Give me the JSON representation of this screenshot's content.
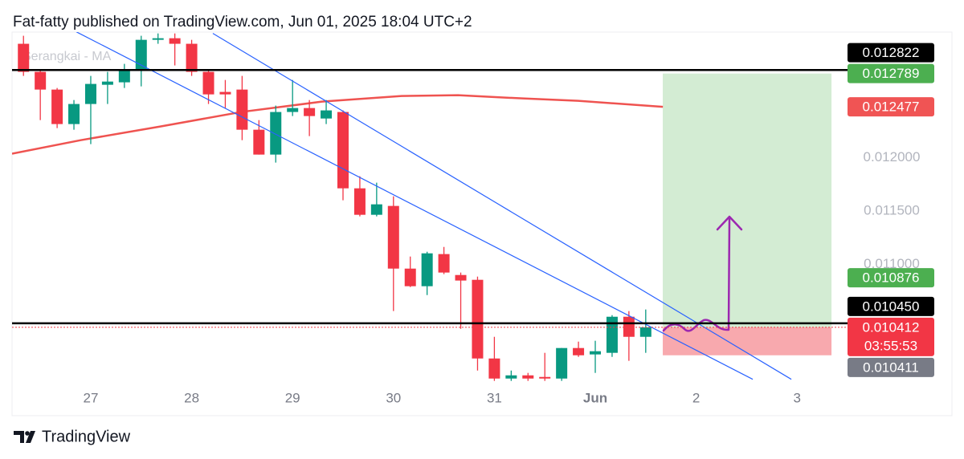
{
  "chart_data": {
    "type": "candlestick",
    "title": "Fat-fatty published on TradingView.com, Jun 01, 2025 18:04 UTC+2",
    "brand": "TradingView",
    "xlim": [
      26.22,
      34.46
    ],
    "ylim": [
      0.0099,
      0.0132
    ],
    "xticks": [
      27,
      28,
      29,
      30,
      31,
      {
        "value": 32,
        "label": "Jun"
      },
      {
        "value": 33,
        "label": "2"
      },
      {
        "value": 34,
        "label": "3"
      }
    ],
    "yticks": [
      {
        "value": 0.012,
        "label": "0.012000"
      },
      {
        "value": 0.0115,
        "label": "0.011500"
      },
      {
        "value": 0.011,
        "label": "0.011000"
      }
    ],
    "up_color": "#089981",
    "down_color": "#f23645",
    "candles": {
      "x": [
        26.3333,
        26.5,
        26.6667,
        26.8333,
        27,
        27.1667,
        27.3333,
        27.5,
        27.6667,
        27.8333,
        28,
        28.1667,
        28.3333,
        28.5,
        28.6667,
        28.8333,
        29,
        29.1667,
        29.3333,
        29.5,
        29.6667,
        29.8333,
        30,
        30.1667,
        30.3333,
        30.5,
        30.6667,
        30.8333,
        31,
        31.1667,
        31.3333,
        31.5,
        31.6667,
        31.8333,
        32,
        32.1667,
        32.3333,
        32.5
      ],
      "open": [
        0.013068,
        0.012805,
        0.012639,
        0.012316,
        0.012504,
        0.012684,
        0.012707,
        0.01282,
        0.013105,
        0.01312,
        0.013068,
        0.012805,
        0.012617,
        0.012639,
        0.012263,
        0.01203,
        0.012429,
        0.012466,
        0.012368,
        0.012429,
        0.011714,
        0.011466,
        0.011549,
        0.010962,
        0.010797,
        0.011098,
        0.010902,
        0.010857,
        0.01012,
        0.009932,
        0.009962,
        0.009947,
        0.009932,
        0.010218,
        0.010158,
        0.010173,
        0.010511,
        0.010323
      ],
      "high": [
        0.013143,
        0.01282,
        0.012654,
        0.012541,
        0.012767,
        0.012805,
        0.01288,
        0.013143,
        0.013165,
        0.013165,
        0.013105,
        0.01282,
        0.012729,
        0.012767,
        0.012353,
        0.012489,
        0.012729,
        0.012541,
        0.012541,
        0.012444,
        0.011827,
        0.011767,
        0.011639,
        0.011075,
        0.01112,
        0.011165,
        0.010925,
        0.010887,
        0.010323,
        0.010007,
        0.009985,
        0.010173,
        0.010218,
        0.010278,
        0.010286,
        0.010526,
        0.010564,
        0.010579
      ],
      "low": [
        0.012767,
        0.012353,
        0.012278,
        0.012263,
        0.012128,
        0.012504,
        0.012654,
        0.012669,
        0.013068,
        0.012865,
        0.012767,
        0.012504,
        0.012466,
        0.012165,
        0.01203,
        0.011955,
        0.012391,
        0.012203,
        0.012316,
        0.011602,
        0.011451,
        0.011451,
        0.010564,
        0.010789,
        0.010714,
        0.01091,
        0.010398,
        0.010007,
        0.00991,
        0.00991,
        0.00991,
        0.00991,
        0.00991,
        0.010135,
        0.009985,
        0.010135,
        0.010098,
        0.010173
      ],
      "close": [
        0.012805,
        0.012639,
        0.012316,
        0.012504,
        0.012692,
        0.012714,
        0.01282,
        0.013105,
        0.01312,
        0.013068,
        0.012805,
        0.012594,
        0.012594,
        0.012263,
        0.01203,
        0.012429,
        0.012466,
        0.012391,
        0.012444,
        0.011714,
        0.011466,
        0.011564,
        0.010962,
        0.010797,
        0.011105,
        0.010925,
        0.01085,
        0.01012,
        0.009932,
        0.009962,
        0.009932,
        0.009932,
        0.010218,
        0.01015,
        0.010188,
        0.010511,
        0.010323,
        0.010412
      ]
    },
    "ma": {
      "name": "Serangkai - MA",
      "color": "#ef5350",
      "x": [
        26.22,
        26.9,
        27.69,
        28.49,
        29.29,
        30.08,
        30.64,
        31.28,
        31.83,
        32.67
      ],
      "values": [
        0.012038,
        0.012165,
        0.012293,
        0.012429,
        0.012526,
        0.012579,
        0.012586,
        0.012556,
        0.012534,
        0.012477
      ]
    },
    "trend_lines": [
      {
        "color": "#2962ff",
        "x": [
          26.857,
          33.561
        ],
        "values": [
          0.01318,
          0.009925
        ]
      },
      {
        "color": "#2962ff",
        "x": [
          28.21,
          33.943
        ],
        "values": [
          0.013165,
          0.009925
        ]
      }
    ],
    "horizontal_lines": [
      {
        "value": 0.012822,
        "color": "#000000"
      },
      {
        "value": 0.01045,
        "color": "#000000"
      }
    ],
    "position": {
      "x": [
        32.669,
        34.341
      ],
      "entry": 0.010412,
      "target": 0.012789,
      "stop": 0.01015,
      "profit_color": "#d3ecd3",
      "loss_color": "#f8a9ae"
    },
    "price_labels": [
      {
        "value": 0.012822,
        "label": "0.012822",
        "color": "#000000"
      },
      {
        "value": 0.012789,
        "label": "0.012789",
        "color": "#4caf50"
      },
      {
        "value": 0.012477,
        "label": "0.012477",
        "color": "#f05454"
      },
      {
        "value": 0.010876,
        "label": "0.010876",
        "color": "#4caf50"
      },
      {
        "value": 0.01045,
        "label": "0.010450",
        "color": "#000000"
      },
      {
        "value": 0.010412,
        "label": "0.010412",
        "color": "#f23645",
        "countdown": "03:55:53"
      },
      {
        "value": 0.010411,
        "label": "0.010411",
        "color": "#787b86"
      }
    ]
  }
}
